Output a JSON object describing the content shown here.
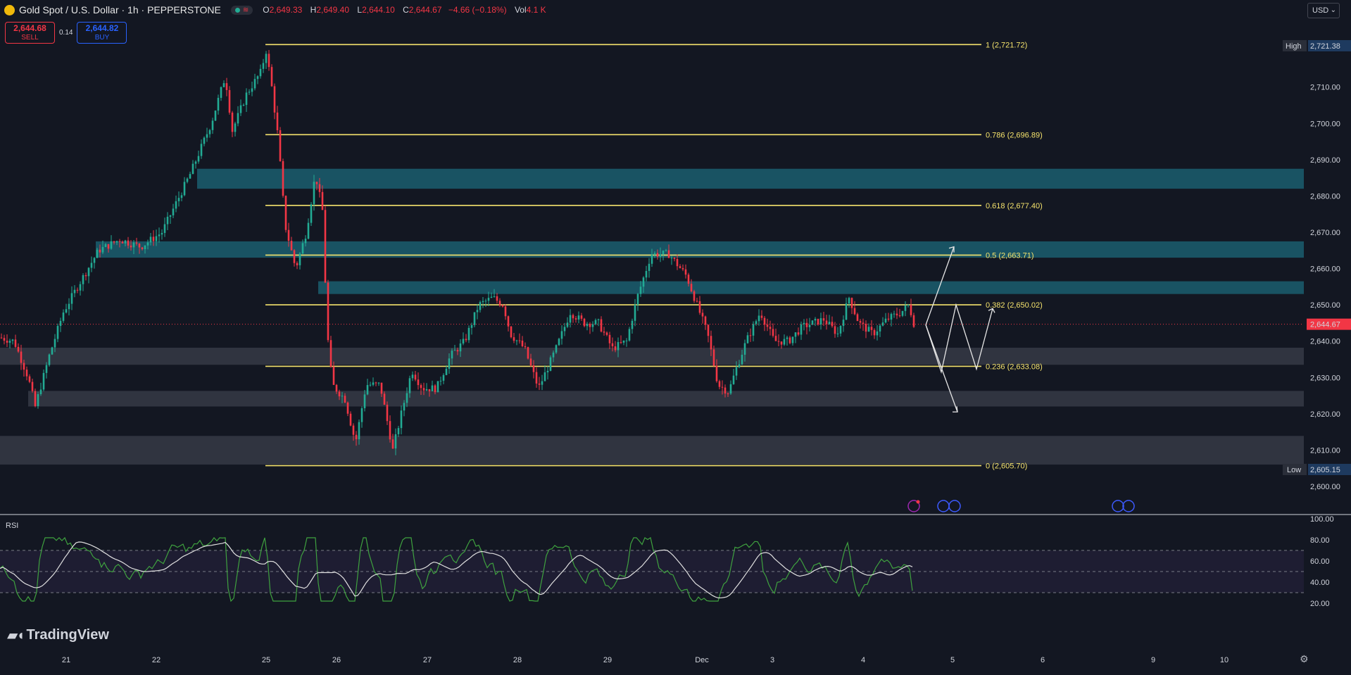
{
  "header": {
    "title": "Gold Spot / U.S. Dollar · 1h · PEPPERSTONE",
    "ohlc": {
      "open_label": "O",
      "open": "2,649.33",
      "high_label": "H",
      "high": "2,649.40",
      "low_label": "L",
      "low": "2,644.10",
      "close_label": "C",
      "close": "2,644.67",
      "change": "−4.66 (−0.18%)",
      "vol_label": "Vol",
      "vol": "4.1 K"
    }
  },
  "trade": {
    "sell_price": "2,644.68",
    "sell_label": "SELL",
    "spread": "0.14",
    "buy_price": "2,644.82",
    "buy_label": "BUY"
  },
  "currency": {
    "value": "USD",
    "chevron": "chevron-down-icon"
  },
  "colors": {
    "background": "#131722",
    "bull": "#22ab94",
    "bear": "#f23645",
    "fib": "#f5e36c",
    "zone_teal": "#1b5e6e",
    "zone_gray": "#363a45",
    "rsi_line": "#3fa23f",
    "rsi_ma": "#e0e0e0"
  },
  "price_axis": {
    "ticks": [
      "2,600.00",
      "2,610.00",
      "2,620.00",
      "2,630.00",
      "2,640.00",
      "2,650.00",
      "2,660.00",
      "2,670.00",
      "2,680.00",
      "2,690.00",
      "2,700.00",
      "2,710.00"
    ],
    "high_label": "High",
    "high_value": "2,721.38",
    "low_label": "Low",
    "low_value": "2,605.15",
    "last_price": "2,644.67"
  },
  "rsi_axis": {
    "title": "RSI",
    "ticks": [
      "100.00",
      "80.00",
      "60.00",
      "40.00",
      "20.00"
    ]
  },
  "time_axis": [
    "21",
    "22",
    "25",
    "26",
    "27",
    "28",
    "29",
    "Dec",
    "3",
    "4",
    "5",
    "6",
    "9",
    "10"
  ],
  "fib_levels": [
    {
      "label": "1 (2,721.72)",
      "price": 2721.72
    },
    {
      "label": "0.786 (2,696.89)",
      "price": 2696.89
    },
    {
      "label": "0.618 (2,677.40)",
      "price": 2677.4
    },
    {
      "label": "0.5 (2,663.71)",
      "price": 2663.71
    },
    {
      "label": "0.382 (2,650.02)",
      "price": 2650.02
    },
    {
      "label": "0.236 (2,633.08)",
      "price": 2633.08
    },
    {
      "label": "0 (2,605.70)",
      "price": 2605.7
    }
  ],
  "brand": {
    "name": "TradingView",
    "icon": "tradingview-logo-icon"
  },
  "events": {
    "icons": [
      "lightning-icon",
      "us-flag-icon",
      "us-flag-icon",
      "us-flag-icon",
      "us-flag-icon"
    ]
  },
  "settings": {
    "icon": "gear-icon"
  }
}
